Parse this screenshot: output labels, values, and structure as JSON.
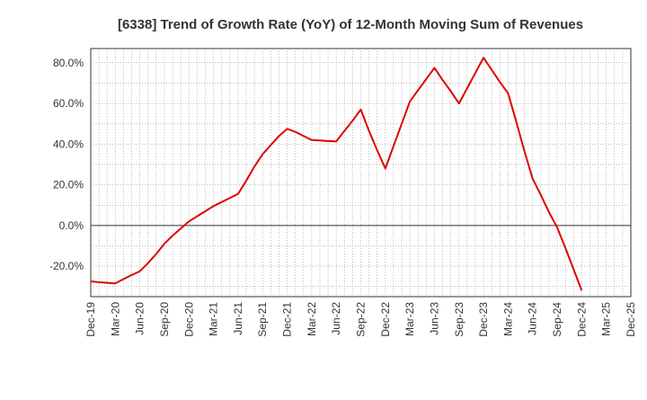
{
  "chart_data": {
    "type": "line",
    "title": "[6338]  Trend of Growth Rate (YoY) of 12-Month Moving Sum of Revenues",
    "xlabel": "",
    "ylabel": "",
    "ylim": [
      -35,
      87
    ],
    "y_ticks": [
      "80.0%",
      "60.0%",
      "40.0%",
      "20.0%",
      "0.0%",
      "-20.0%"
    ],
    "y_tick_values": [
      80,
      60,
      40,
      20,
      0,
      -20
    ],
    "x_tick_labels": [
      "Dec-19",
      "Mar-20",
      "Jun-20",
      "Sep-20",
      "Dec-20",
      "Mar-21",
      "Jun-21",
      "Sep-21",
      "Dec-21",
      "Mar-22",
      "Jun-22",
      "Sep-22",
      "Dec-22",
      "Mar-23",
      "Jun-23",
      "Sep-23",
      "Dec-23",
      "Mar-24",
      "Jun-24",
      "Sep-24",
      "Dec-24",
      "Mar-25",
      "Dec-25"
    ],
    "x": [
      "Dec-19",
      "Jan-20",
      "Feb-20",
      "Mar-20",
      "Apr-20",
      "May-20",
      "Jun-20",
      "Jul-20",
      "Aug-20",
      "Sep-20",
      "Oct-20",
      "Nov-20",
      "Dec-20",
      "Jan-21",
      "Feb-21",
      "Mar-21",
      "Apr-21",
      "May-21",
      "Jun-21",
      "Jul-21",
      "Aug-21",
      "Sep-21",
      "Oct-21",
      "Nov-21",
      "Dec-21",
      "Jan-22",
      "Feb-22",
      "Mar-22",
      "Apr-22",
      "May-22",
      "Jun-22",
      "Jul-22",
      "Aug-22",
      "Sep-22",
      "Oct-22",
      "Nov-22",
      "Dec-22",
      "Jan-23",
      "Feb-23",
      "Mar-23",
      "Apr-23",
      "May-23",
      "Jun-23",
      "Jul-23",
      "Aug-23",
      "Sep-23",
      "Oct-23",
      "Nov-23",
      "Dec-23",
      "Jan-24",
      "Feb-24",
      "Mar-24",
      "Apr-24",
      "May-24",
      "Jun-24",
      "Jul-24",
      "Aug-24",
      "Sep-24",
      "Oct-24",
      "Nov-24",
      "Dec-24"
    ],
    "series": [
      {
        "values": [
          -27.5,
          -27.9,
          -28.2,
          -28.5,
          -26.4,
          -24.4,
          -22.5,
          -18.5,
          -14.0,
          -9.0,
          -5.0,
          -1.5,
          2.0,
          4.5,
          7.0,
          9.5,
          11.5,
          13.5,
          15.5,
          22.0,
          29.0,
          35.0,
          39.5,
          44.0,
          47.5,
          46.0,
          44.0,
          42.0,
          41.8,
          41.5,
          41.3,
          46.5,
          51.5,
          57.0,
          46.5,
          37.0,
          28.0,
          39.0,
          50.0,
          61.0,
          66.5,
          72.0,
          77.5,
          71.5,
          66.0,
          60.0,
          67.5,
          75.0,
          82.5,
          76.5,
          70.5,
          65.0,
          51.0,
          36.5,
          23.0,
          15.0,
          6.5,
          -1.0,
          -11.0,
          -21.5,
          -32.0
        ]
      }
    ],
    "line_color": "#e00000",
    "grid": true,
    "legend": "none"
  }
}
